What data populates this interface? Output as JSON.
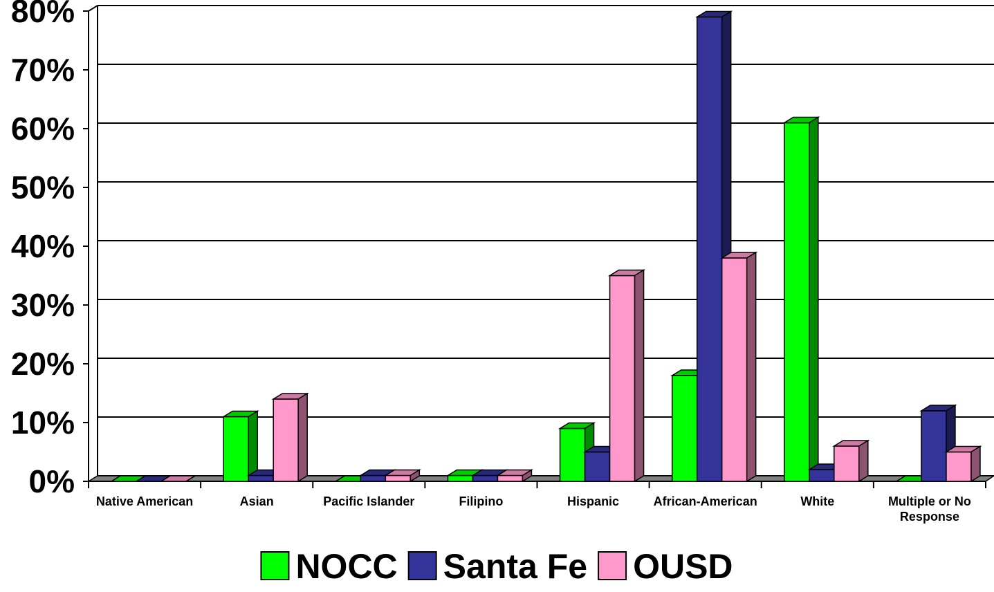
{
  "chart_data": {
    "type": "bar",
    "categories": [
      [
        "Native American"
      ],
      [
        "Asian"
      ],
      [
        "Pacific Islander"
      ],
      [
        "Filipino"
      ],
      [
        "Hispanic"
      ],
      [
        "African-American"
      ],
      [
        "White"
      ],
      [
        "Multiple or No",
        "Response"
      ]
    ],
    "series": [
      {
        "name": "NOCC",
        "color": "#00ff00",
        "values": [
          0,
          11,
          0,
          1,
          9,
          18,
          61,
          0
        ]
      },
      {
        "name": "Santa Fe",
        "color": "#333399",
        "values": [
          0,
          1,
          1,
          1,
          5,
          79,
          2,
          12
        ]
      },
      {
        "name": "OUSD",
        "color": "#ff99cc",
        "values": [
          0,
          14,
          1,
          1,
          35,
          38,
          6,
          5
        ]
      }
    ],
    "yticks": [
      "0%",
      "10%",
      "20%",
      "30%",
      "40%",
      "50%",
      "60%",
      "70%",
      "80%"
    ],
    "ylim": [
      0,
      80
    ],
    "grid": true,
    "legend_position": "bottom",
    "title": "",
    "xlabel": "",
    "ylabel": ""
  }
}
